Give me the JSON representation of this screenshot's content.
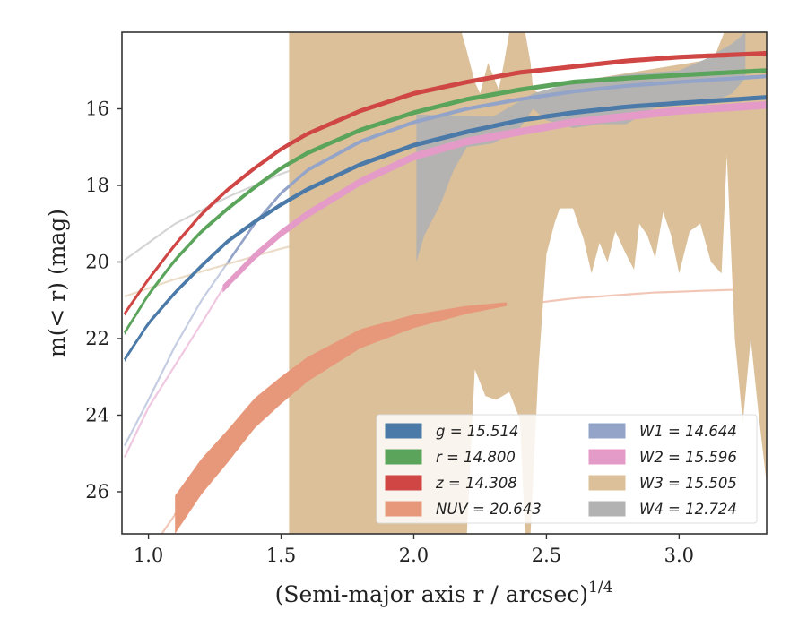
{
  "chart_data": {
    "type": "line",
    "title": "",
    "xlabel": "(Semi-major axis r / arcsec)",
    "xlabel_exponent": "1/4",
    "ylabel": "m(< r) (mag)",
    "xlim": [
      0.9,
      3.33
    ],
    "ylim": [
      27.1,
      14.0
    ],
    "y_inverted": true,
    "grid": false,
    "legend_placement": "lower-right",
    "legend_columns": 2,
    "x_ticks": [
      {
        "value": 1.0,
        "label": "1.0"
      },
      {
        "value": 1.5,
        "label": "1.5"
      },
      {
        "value": 2.0,
        "label": "2.0"
      },
      {
        "value": 2.5,
        "label": "2.5"
      },
      {
        "value": 3.0,
        "label": "3.0"
      }
    ],
    "y_ticks": [
      {
        "value": 16,
        "label": "16"
      },
      {
        "value": 18,
        "label": "18"
      },
      {
        "value": 20,
        "label": "20"
      },
      {
        "value": 22,
        "label": "22"
      },
      {
        "value": 24,
        "label": "24"
      },
      {
        "value": 26,
        "label": "26"
      }
    ],
    "series": [
      {
        "name": "g",
        "legend_label": "g = 15.514",
        "color": "#4c7aa8",
        "x": [
          0.91,
          1.0,
          1.1,
          1.2,
          1.3,
          1.4,
          1.5,
          1.6,
          1.8,
          2.0,
          2.2,
          2.4,
          2.6,
          2.8,
          3.0,
          3.33
        ],
        "y": [
          22.55,
          21.6,
          20.8,
          20.1,
          19.45,
          18.95,
          18.5,
          18.1,
          17.45,
          16.95,
          16.6,
          16.3,
          16.1,
          15.95,
          15.85,
          15.7
        ],
        "band": 0.06,
        "extension": null
      },
      {
        "name": "r",
        "legend_label": "r = 14.800",
        "color": "#5ba45b",
        "x": [
          0.91,
          1.0,
          1.1,
          1.2,
          1.3,
          1.4,
          1.5,
          1.6,
          1.8,
          2.0,
          2.2,
          2.4,
          2.6,
          2.8,
          3.0,
          3.33
        ],
        "y": [
          21.85,
          20.85,
          19.95,
          19.2,
          18.6,
          18.05,
          17.55,
          17.15,
          16.55,
          16.1,
          15.75,
          15.5,
          15.3,
          15.2,
          15.12,
          15.0
        ],
        "band": 0.06,
        "extension": null
      },
      {
        "name": "z",
        "legend_label": "z = 14.308",
        "color": "#cf4644",
        "x": [
          0.91,
          1.0,
          1.1,
          1.2,
          1.3,
          1.4,
          1.5,
          1.6,
          1.8,
          2.0,
          2.2,
          2.4,
          2.6,
          2.8,
          3.0,
          3.33
        ],
        "y": [
          21.35,
          20.45,
          19.55,
          18.75,
          18.1,
          17.55,
          17.05,
          16.65,
          16.05,
          15.6,
          15.3,
          15.05,
          14.9,
          14.75,
          14.65,
          14.55
        ],
        "band": 0.06,
        "extension": null
      },
      {
        "name": "NUV",
        "legend_label": "NUV = 20.643",
        "color": "#e8987a",
        "x": [
          1.1,
          1.2,
          1.3,
          1.4,
          1.5,
          1.6,
          1.8,
          2.0,
          2.2,
          2.35
        ],
        "y": [
          26.6,
          25.6,
          24.8,
          23.95,
          23.35,
          22.8,
          22.0,
          21.55,
          21.25,
          21.1
        ],
        "band": 0.5,
        "band_min": 0.05,
        "extension": {
          "x": [
            1.04,
            1.1,
            1.3,
            1.5,
            1.8,
            2.0,
            2.3,
            2.6,
            2.9,
            3.1,
            3.33
          ],
          "y": [
            27.2,
            26.6,
            24.8,
            23.35,
            22.0,
            21.55,
            21.2,
            20.95,
            20.8,
            20.75,
            20.7
          ]
        }
      },
      {
        "name": "W1",
        "legend_label": "W1 = 14.644",
        "color": "#93a4c8",
        "x": [
          1.3,
          1.4,
          1.5,
          1.6,
          1.8,
          2.0,
          2.2,
          2.4,
          2.6,
          2.8,
          3.0,
          3.33
        ],
        "y": [
          20.0,
          19.0,
          18.2,
          17.6,
          16.85,
          16.35,
          16.0,
          15.75,
          15.55,
          15.4,
          15.3,
          15.15
        ],
        "band": 0.05,
        "extension": {
          "x": [
            0.91,
            1.0,
            1.1,
            1.2,
            1.3
          ],
          "y": [
            24.8,
            23.6,
            22.2,
            21.0,
            20.0
          ]
        }
      },
      {
        "name": "W2",
        "legend_label": "W2 = 15.596",
        "color": "#e49bc8",
        "x": [
          1.28,
          1.4,
          1.5,
          1.6,
          1.8,
          2.0,
          2.2,
          2.4,
          2.6,
          2.8,
          3.0,
          3.33
        ],
        "y": [
          20.7,
          19.85,
          19.25,
          18.75,
          17.9,
          17.25,
          16.85,
          16.6,
          16.35,
          16.2,
          16.05,
          15.9
        ],
        "band": 0.1,
        "extension": {
          "x": [
            0.91,
            1.0,
            1.1,
            1.2,
            1.28
          ],
          "y": [
            25.1,
            23.8,
            22.7,
            21.6,
            20.7
          ]
        }
      },
      {
        "name": "W3",
        "legend_label": "W3 = 15.505",
        "color": "#dbc09a",
        "x_start": 1.53,
        "upper_boundary": {
          "x": [
            1.53,
            2.18,
            2.2,
            2.23,
            2.25,
            2.28,
            2.32,
            2.34,
            2.36,
            2.38,
            2.42,
            2.44,
            2.45,
            2.5,
            2.55,
            2.6,
            3.13,
            3.17,
            3.2,
            3.33
          ],
          "y": [
            14.0,
            14.0,
            14.5,
            15.3,
            15.6,
            14.8,
            15.5,
            14.8,
            14.0,
            14.0,
            14.0,
            14.8,
            15.5,
            15.7,
            15.5,
            15.3,
            14.7,
            14.0,
            14.0,
            14.0
          ]
        },
        "lower_boundary": {
          "x": [
            1.53,
            2.16,
            2.2,
            2.23,
            2.27,
            2.31,
            2.36,
            2.4,
            2.42,
            2.44,
            2.47,
            2.5,
            2.53,
            2.55,
            2.6,
            2.64,
            2.67,
            2.7,
            2.73,
            2.76,
            2.8,
            2.83,
            2.85,
            2.88,
            2.91,
            2.94,
            2.97,
            3.0,
            3.04,
            3.08,
            3.12,
            3.16,
            3.18,
            3.21,
            3.24,
            3.27,
            3.3,
            3.33
          ],
          "y": [
            27.1,
            27.1,
            27.1,
            22.8,
            23.5,
            23.6,
            23.4,
            24.1,
            27.1,
            27.1,
            22.8,
            19.8,
            19.0,
            18.6,
            18.6,
            19.4,
            20.3,
            19.5,
            20.0,
            19.2,
            19.8,
            20.2,
            19.0,
            19.3,
            19.9,
            18.7,
            19.3,
            20.3,
            19.2,
            19.0,
            20.0,
            20.3,
            17.2,
            22.0,
            24.2,
            22.0,
            24.0,
            25.8
          ]
        },
        "extension": {
          "x": [
            0.91,
            1.1,
            1.3,
            1.5,
            1.8,
            2.1,
            2.4,
            2.7,
            3.0,
            3.33
          ],
          "y": [
            20.9,
            20.45,
            20.05,
            19.65,
            19.15,
            18.65,
            18.2,
            17.8,
            17.45,
            17.15
          ]
        }
      },
      {
        "name": "W4",
        "legend_label": "W4 = 12.724",
        "color": "#b2b2b2",
        "x_start": 2.01,
        "upper_boundary": {
          "x": [
            2.01,
            2.3,
            2.45,
            2.6,
            2.8,
            3.0,
            3.1,
            3.2,
            3.25
          ],
          "y": [
            16.15,
            16.2,
            15.6,
            15.3,
            15.1,
            15.0,
            14.7,
            14.3,
            14.0
          ]
        },
        "lower_boundary": {
          "x": [
            2.01,
            2.04,
            2.1,
            2.15,
            2.2,
            2.3,
            2.4,
            2.45,
            2.5,
            2.6,
            2.7,
            2.8,
            2.9,
            3.0,
            3.1,
            3.2,
            3.25
          ],
          "y": [
            20.0,
            19.3,
            18.5,
            17.6,
            17.0,
            16.9,
            16.5,
            16.0,
            16.3,
            16.5,
            16.4,
            16.4,
            16.0,
            15.8,
            15.9,
            15.6,
            15.2
          ]
        },
        "extension": {
          "x": [
            0.91,
            1.1,
            1.3,
            1.5,
            1.7,
            1.9,
            2.01
          ],
          "y": [
            19.95,
            19.0,
            18.3,
            17.7,
            17.2,
            16.7,
            16.5
          ]
        }
      }
    ]
  }
}
